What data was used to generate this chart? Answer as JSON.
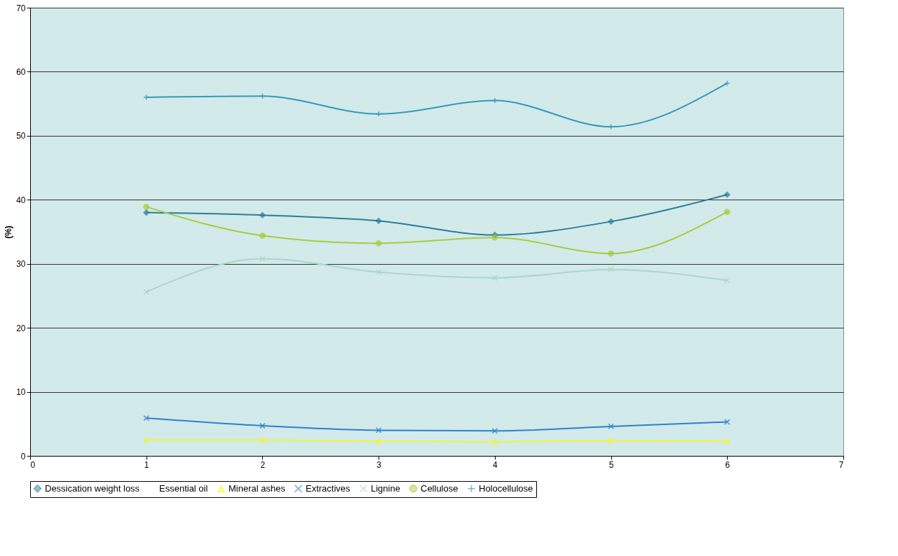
{
  "chart_data": {
    "type": "line",
    "ylabel": "(%)",
    "x": [
      1,
      2,
      3,
      4,
      5,
      6
    ],
    "xlim": [
      0,
      7
    ],
    "xticks": [
      0,
      1,
      2,
      3,
      4,
      5,
      6,
      7
    ],
    "ylim": [
      0,
      70
    ],
    "yticks": [
      0,
      10,
      20,
      30,
      40,
      50,
      60,
      70
    ],
    "grid": "y",
    "legend": "bottom",
    "series": [
      {
        "name": "Dessication weight loss",
        "color": "#2a7d9a",
        "marker": "diamond",
        "values": [
          38.0,
          37.6,
          36.7,
          34.5,
          36.6,
          40.8
        ]
      },
      {
        "name": "Essential oil",
        "marker": "none",
        "values": [
          null,
          null,
          null,
          null,
          null,
          null
        ]
      },
      {
        "name": "Mineral ashes",
        "color": "#f5f536",
        "marker": "triangle",
        "values": [
          2.5,
          2.5,
          2.3,
          2.2,
          2.4,
          2.3
        ]
      },
      {
        "name": "Extractives",
        "color": "#2f7fd0",
        "marker": "cross",
        "values": [
          5.9,
          4.7,
          4.0,
          3.9,
          4.6,
          5.3
        ]
      },
      {
        "name": "Lignine",
        "color": "#a9d8c8",
        "marker": "cross",
        "values": [
          25.6,
          30.8,
          28.7,
          27.8,
          29.1,
          27.4
        ]
      },
      {
        "name": "Cellulose",
        "color": "#a8cc3a",
        "marker": "circle",
        "values": [
          38.9,
          34.4,
          33.2,
          34.1,
          31.6,
          38.1
        ]
      },
      {
        "name": "Holocellulose",
        "color": "#3399bb",
        "marker": "plus",
        "values": [
          56.0,
          56.2,
          53.4,
          55.5,
          51.4,
          58.2
        ]
      }
    ]
  }
}
